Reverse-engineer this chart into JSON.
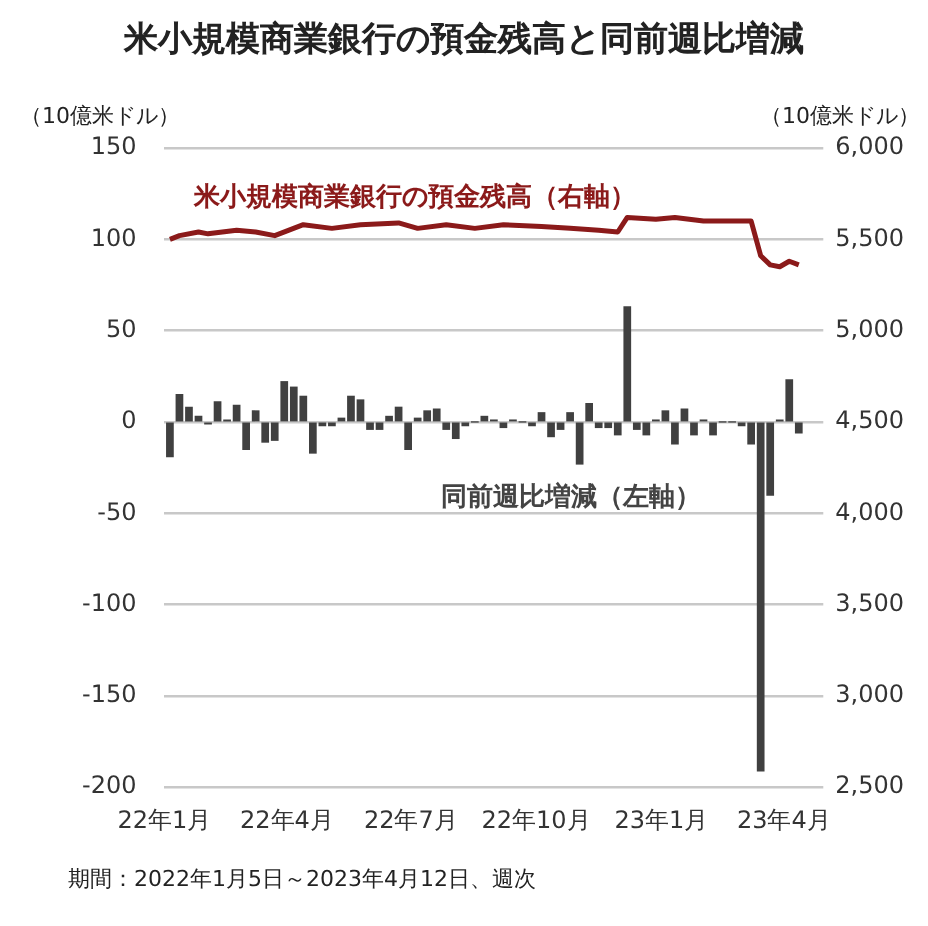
{
  "chart_data": {
    "type": "bar",
    "title": "米小規模商業銀行の預金残高と同前週比増減",
    "ylabel": "（10億米ドル）",
    "y2label": "（10億米ドル）",
    "annotations": [
      "期間：2022年1月5日～2023年4月12日、週次"
    ],
    "x": [
      "2022-01-05",
      "2022-01-12",
      "2022-01-19",
      "2022-01-26",
      "2022-02-02",
      "2022-02-09",
      "2022-02-16",
      "2022-02-23",
      "2022-03-02",
      "2022-03-09",
      "2022-03-16",
      "2022-03-23",
      "2022-03-30",
      "2022-04-06",
      "2022-04-13",
      "2022-04-20",
      "2022-04-27",
      "2022-05-04",
      "2022-05-11",
      "2022-05-18",
      "2022-05-25",
      "2022-06-01",
      "2022-06-08",
      "2022-06-15",
      "2022-06-22",
      "2022-06-29",
      "2022-07-06",
      "2022-07-13",
      "2022-07-20",
      "2022-07-27",
      "2022-08-03",
      "2022-08-10",
      "2022-08-17",
      "2022-08-24",
      "2022-08-31",
      "2022-09-07",
      "2022-09-14",
      "2022-09-21",
      "2022-09-28",
      "2022-10-05",
      "2022-10-12",
      "2022-10-19",
      "2022-10-26",
      "2022-11-02",
      "2022-11-09",
      "2022-11-16",
      "2022-11-23",
      "2022-11-30",
      "2022-12-07",
      "2022-12-14",
      "2022-12-21",
      "2022-12-28",
      "2023-01-04",
      "2023-01-11",
      "2023-01-18",
      "2023-01-25",
      "2023-02-01",
      "2023-02-08",
      "2023-02-15",
      "2023-02-22",
      "2023-03-01",
      "2023-03-08",
      "2023-03-15",
      "2023-03-22",
      "2023-03-29",
      "2023-04-05",
      "2023-04-12"
    ],
    "series": [
      {
        "name": "同前週比増減（左軸）",
        "color": "#404040",
        "values": [
          -19,
          15,
          8,
          3,
          -1,
          11,
          1,
          9,
          -15,
          6,
          -11,
          -10,
          22,
          19,
          14,
          -17,
          -2,
          -2,
          2,
          14,
          12,
          -4,
          -4,
          3,
          8,
          -15,
          2,
          6,
          7,
          -4,
          -9,
          -2,
          0,
          3,
          1,
          -3,
          1,
          0,
          -2,
          5,
          -8,
          -4,
          5,
          -23,
          10,
          -3,
          -3,
          -7,
          63,
          -4,
          -7,
          1,
          6,
          -12,
          7,
          -7,
          1,
          -7,
          0,
          0,
          -2,
          -12,
          -191,
          -40,
          1,
          23,
          -6
        ]
      },
      {
        "name": "米小規模商業銀行の預金残高（右軸）",
        "type": "line",
        "axis": "y2",
        "color": "#8b1a1a",
        "x": [
          "2022-01-05",
          "2022-01-12",
          "2022-01-26",
          "2022-02-02",
          "2022-02-23",
          "2022-03-09",
          "2022-03-23",
          "2022-04-13",
          "2022-05-04",
          "2022-05-25",
          "2022-06-22",
          "2022-07-06",
          "2022-07-27",
          "2022-08-17",
          "2022-09-07",
          "2022-10-05",
          "2022-10-26",
          "2022-11-16",
          "2022-11-30",
          "2022-12-07",
          "2022-12-28",
          "2023-01-11",
          "2023-02-01",
          "2023-03-08",
          "2023-03-15",
          "2023-03-22",
          "2023-03-29",
          "2023-04-05",
          "2023-04-12"
        ],
        "values": [
          5500,
          5520,
          5540,
          5530,
          5550,
          5540,
          5520,
          5580,
          5560,
          5580,
          5590,
          5560,
          5580,
          5560,
          5580,
          5570,
          5560,
          5550,
          5540,
          5620,
          5610,
          5620,
          5600,
          5600,
          5410,
          5360,
          5350,
          5380,
          5360
        ]
      }
    ],
    "xlim": [
      "2022-01-01",
      "2023-04-30"
    ],
    "xticks": [
      {
        "value": "2022-01",
        "label": "22年1月"
      },
      {
        "value": "2022-04",
        "label": "22年4月"
      },
      {
        "value": "2022-07",
        "label": "22年7月"
      },
      {
        "value": "2022-10",
        "label": "22年10月"
      },
      {
        "value": "2023-01",
        "label": "23年1月"
      },
      {
        "value": "2023-04",
        "label": "23年4月"
      }
    ],
    "ylim": [
      -200,
      150
    ],
    "yticks": [
      -200,
      -150,
      -100,
      -50,
      0,
      50,
      100,
      150
    ],
    "y2lim": [
      2500,
      6000
    ],
    "y2ticks": [
      {
        "value": 2500,
        "label": "2,500"
      },
      {
        "value": 3000,
        "label": "3,000"
      },
      {
        "value": 3500,
        "label": "3,500"
      },
      {
        "value": 4000,
        "label": "4,000"
      },
      {
        "value": 4500,
        "label": "4,500"
      },
      {
        "value": 5000,
        "label": "5,000"
      },
      {
        "value": 5500,
        "label": "5,500"
      },
      {
        "value": 6000,
        "label": "6,000"
      }
    ],
    "grid": "y",
    "legend": false,
    "marker": "none",
    "line_style": "solid"
  }
}
